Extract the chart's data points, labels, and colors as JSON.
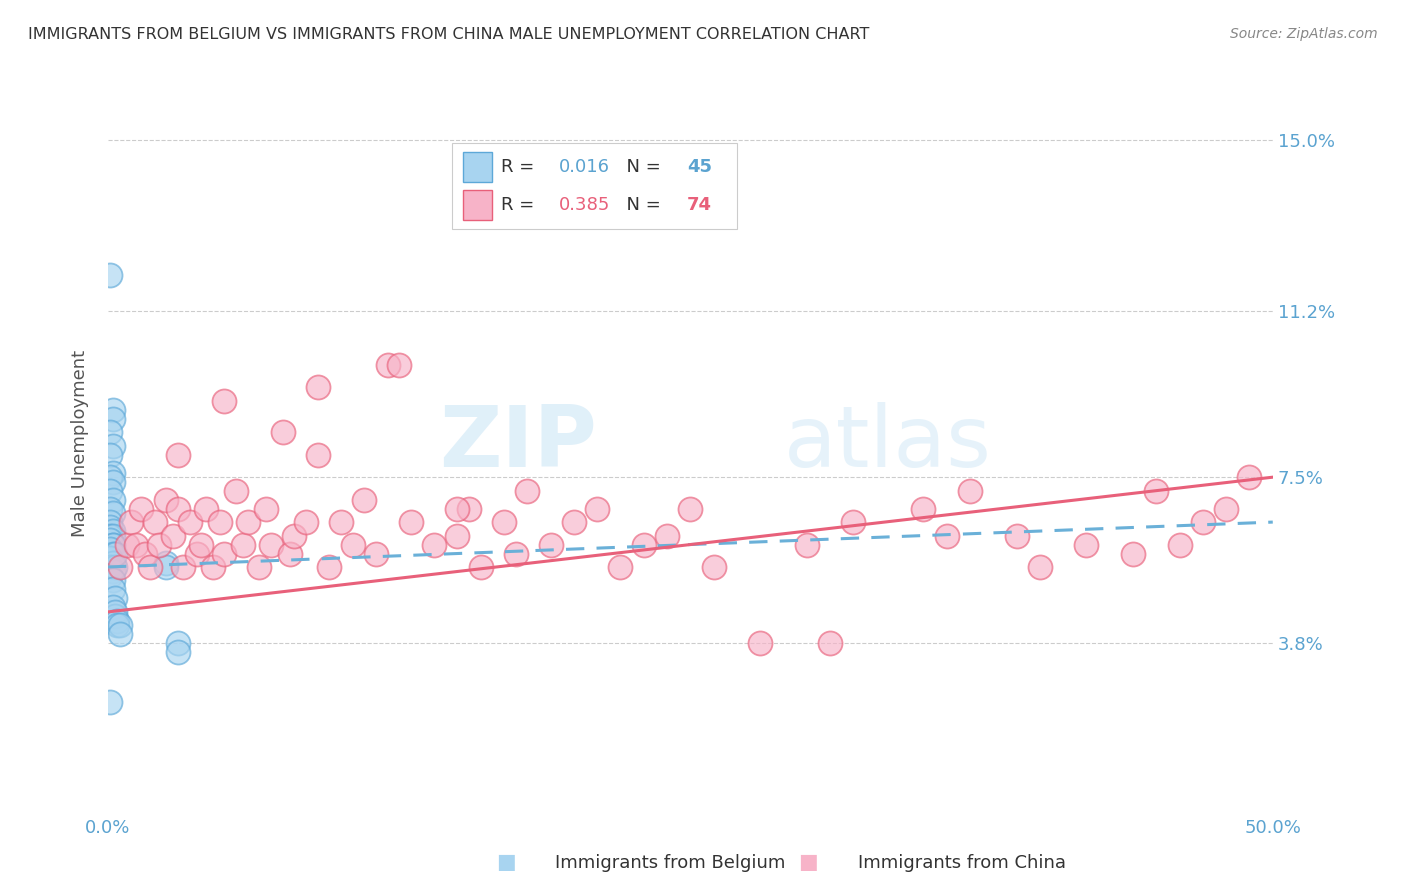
{
  "title": "IMMIGRANTS FROM BELGIUM VS IMMIGRANTS FROM CHINA MALE UNEMPLOYMENT CORRELATION CHART",
  "source": "Source: ZipAtlas.com",
  "ylabel": "Male Unemployment",
  "y_ticks": [
    0.038,
    0.075,
    0.112,
    0.15
  ],
  "y_tick_labels": [
    "3.8%",
    "7.5%",
    "11.2%",
    "15.0%"
  ],
  "xlim": [
    0.0,
    0.5
  ],
  "ylim": [
    0.0,
    0.165
  ],
  "belgium_R": "0.016",
  "belgium_N": "45",
  "china_R": "0.385",
  "china_N": "74",
  "legend_label_belgium": "Immigrants from Belgium",
  "legend_label_china": "Immigrants from China",
  "color_belgium": "#a8d4f0",
  "color_china": "#f7b3c8",
  "edge_color_belgium": "#5da8d8",
  "edge_color_china": "#e8607a",
  "line_color_belgium": "#6ab0d8",
  "line_color_china": "#e8607a",
  "background_color": "#ffffff",
  "watermark": "ZIPatlas",
  "belgium_x": [
    0.001,
    0.002,
    0.002,
    0.001,
    0.002,
    0.001,
    0.002,
    0.001,
    0.002,
    0.001,
    0.002,
    0.001,
    0.002,
    0.001,
    0.001,
    0.002,
    0.001,
    0.002,
    0.001,
    0.002,
    0.002,
    0.001,
    0.002,
    0.001,
    0.002,
    0.001,
    0.002,
    0.001,
    0.003,
    0.002,
    0.003,
    0.002,
    0.003,
    0.002,
    0.003,
    0.003,
    0.004,
    0.004,
    0.005,
    0.005,
    0.025,
    0.025,
    0.03,
    0.03,
    0.001
  ],
  "belgium_y": [
    0.12,
    0.09,
    0.088,
    0.085,
    0.082,
    0.08,
    0.076,
    0.075,
    0.074,
    0.072,
    0.07,
    0.068,
    0.067,
    0.065,
    0.064,
    0.063,
    0.062,
    0.062,
    0.061,
    0.06,
    0.06,
    0.059,
    0.058,
    0.057,
    0.056,
    0.055,
    0.054,
    0.053,
    0.055,
    0.052,
    0.058,
    0.05,
    0.048,
    0.046,
    0.044,
    0.045,
    0.043,
    0.042,
    0.042,
    0.04,
    0.056,
    0.055,
    0.038,
    0.036,
    0.025
  ],
  "china_x": [
    0.005,
    0.008,
    0.01,
    0.012,
    0.014,
    0.016,
    0.018,
    0.02,
    0.022,
    0.025,
    0.028,
    0.03,
    0.032,
    0.035,
    0.038,
    0.04,
    0.042,
    0.045,
    0.048,
    0.05,
    0.055,
    0.058,
    0.06,
    0.065,
    0.068,
    0.07,
    0.075,
    0.078,
    0.08,
    0.085,
    0.09,
    0.095,
    0.1,
    0.105,
    0.11,
    0.115,
    0.12,
    0.125,
    0.13,
    0.14,
    0.15,
    0.155,
    0.16,
    0.17,
    0.175,
    0.18,
    0.19,
    0.2,
    0.21,
    0.22,
    0.23,
    0.24,
    0.25,
    0.26,
    0.28,
    0.3,
    0.31,
    0.32,
    0.35,
    0.36,
    0.37,
    0.39,
    0.4,
    0.42,
    0.44,
    0.45,
    0.46,
    0.47,
    0.48,
    0.49,
    0.03,
    0.05,
    0.09,
    0.15
  ],
  "china_y": [
    0.055,
    0.06,
    0.065,
    0.06,
    0.068,
    0.058,
    0.055,
    0.065,
    0.06,
    0.07,
    0.062,
    0.068,
    0.055,
    0.065,
    0.058,
    0.06,
    0.068,
    0.055,
    0.065,
    0.058,
    0.072,
    0.06,
    0.065,
    0.055,
    0.068,
    0.06,
    0.085,
    0.058,
    0.062,
    0.065,
    0.08,
    0.055,
    0.065,
    0.06,
    0.07,
    0.058,
    0.1,
    0.1,
    0.065,
    0.06,
    0.062,
    0.068,
    0.055,
    0.065,
    0.058,
    0.072,
    0.06,
    0.065,
    0.068,
    0.055,
    0.06,
    0.062,
    0.068,
    0.055,
    0.038,
    0.06,
    0.038,
    0.065,
    0.068,
    0.062,
    0.072,
    0.062,
    0.055,
    0.06,
    0.058,
    0.072,
    0.06,
    0.065,
    0.068,
    0.075,
    0.08,
    0.092,
    0.095,
    0.068
  ]
}
